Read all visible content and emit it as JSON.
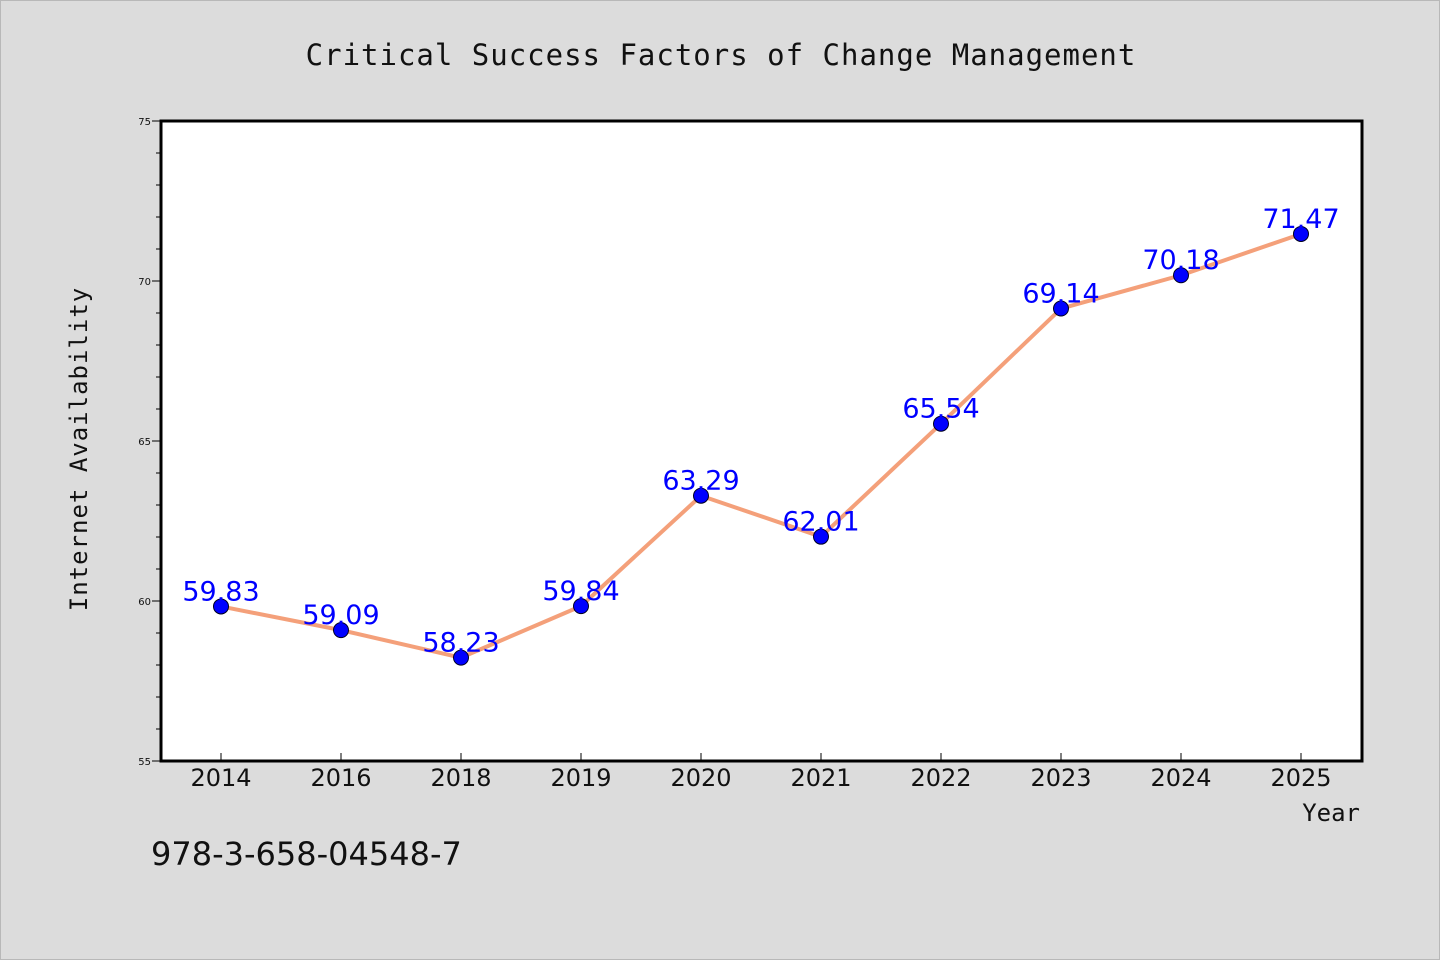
{
  "chart_data": {
    "type": "line",
    "title": "Critical Success Factors of Change Management",
    "xlabel": "Year",
    "ylabel": "Internet Availability",
    "categories": [
      "2014",
      "2016",
      "2018",
      "2019",
      "2020",
      "2021",
      "2022",
      "2023",
      "2024",
      "2025"
    ],
    "values": [
      59.83,
      59.09,
      58.23,
      59.84,
      63.29,
      62.01,
      65.54,
      69.14,
      70.18,
      71.47
    ],
    "data_labels": [
      "59.83",
      "59.09",
      "58.23",
      "59.84",
      "63.29",
      "62.01",
      "65.54",
      "69.14",
      "70.18",
      "71.47"
    ],
    "ylim": [
      55,
      75
    ],
    "yticks": [
      55,
      60,
      65,
      70,
      75
    ],
    "grid": false,
    "line_color": "#f4a07a",
    "marker_color": "#0000ff",
    "label_color": "#0000ff"
  },
  "footer": {
    "code": "978-3-658-04548-7"
  }
}
